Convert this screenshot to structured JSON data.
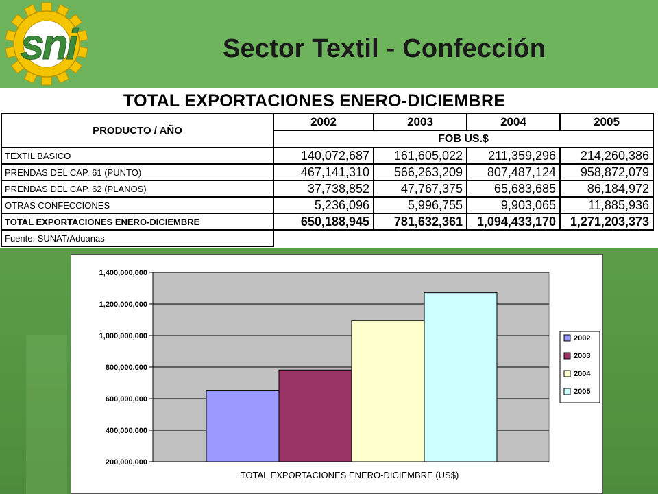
{
  "slide": {
    "title": "Sector Textil - Confección",
    "logo_text": "sni"
  },
  "colors": {
    "header_green": "#6db45c",
    "logo_gear": "#f5c400",
    "logo_text": "#3d8a3d",
    "bar_2002": "#9999ff",
    "bar_2003": "#993366",
    "bar_2004": "#ffffcc",
    "bar_2005": "#ccffff",
    "plot_bg": "#c0c0c0"
  },
  "table": {
    "title": "TOTAL EXPORTACIONES ENERO-DICIEMBRE",
    "header_product": "PRODUCTO / AÑO",
    "years": [
      "2002",
      "2003",
      "2004",
      "2005"
    ],
    "unit": "FOB US.$",
    "rows": [
      {
        "label": "TEXTIL BASICO",
        "values": [
          "140,072,687",
          "161,605,022",
          "211,359,296",
          "214,260,386"
        ]
      },
      {
        "label": "PRENDAS DEL CAP. 61 (PUNTO)",
        "values": [
          "467,141,310",
          "566,263,209",
          "807,487,124",
          "958,872,079"
        ]
      },
      {
        "label": "PRENDAS DEL CAP. 62 (PLANOS)",
        "values": [
          "37,738,852",
          "47,767,375",
          "65,683,685",
          "86,184,972"
        ]
      },
      {
        "label": "OTRAS CONFECCIONES",
        "values": [
          "5,236,096",
          "5,996,755",
          "9,903,065",
          "11,885,936"
        ]
      },
      {
        "label": "TOTAL EXPORTACIONES ENERO-DICIEMBRE",
        "values": [
          "650,188,945",
          "781,632,361",
          "1,094,433,170",
          "1,271,203,373"
        ]
      }
    ],
    "source": "Fuente: SUNAT/Aduanas"
  },
  "chart_data": {
    "type": "bar",
    "title": "",
    "xlabel": "TOTAL EXPORTACIONES ENERO-DICIEMBRE (US$)",
    "ylabel": "",
    "ylim": [
      200000000,
      1400000000
    ],
    "yticks": [
      200000000,
      400000000,
      600000000,
      800000000,
      1000000000,
      1200000000,
      1400000000
    ],
    "ytick_labels": [
      "200,000,000",
      "400,000,000",
      "600,000,000",
      "800,000,000",
      "1,000,000,000",
      "1,200,000,000",
      "1,400,000,000"
    ],
    "grid": true,
    "legend_position": "right",
    "series": [
      {
        "name": "2002",
        "value": 650188945,
        "color": "#9999ff"
      },
      {
        "name": "2003",
        "value": 781632361,
        "color": "#993366"
      },
      {
        "name": "2004",
        "value": 1094433170,
        "color": "#ffffcc"
      },
      {
        "name": "2005",
        "value": 1271203373,
        "color": "#ccffff"
      }
    ]
  }
}
